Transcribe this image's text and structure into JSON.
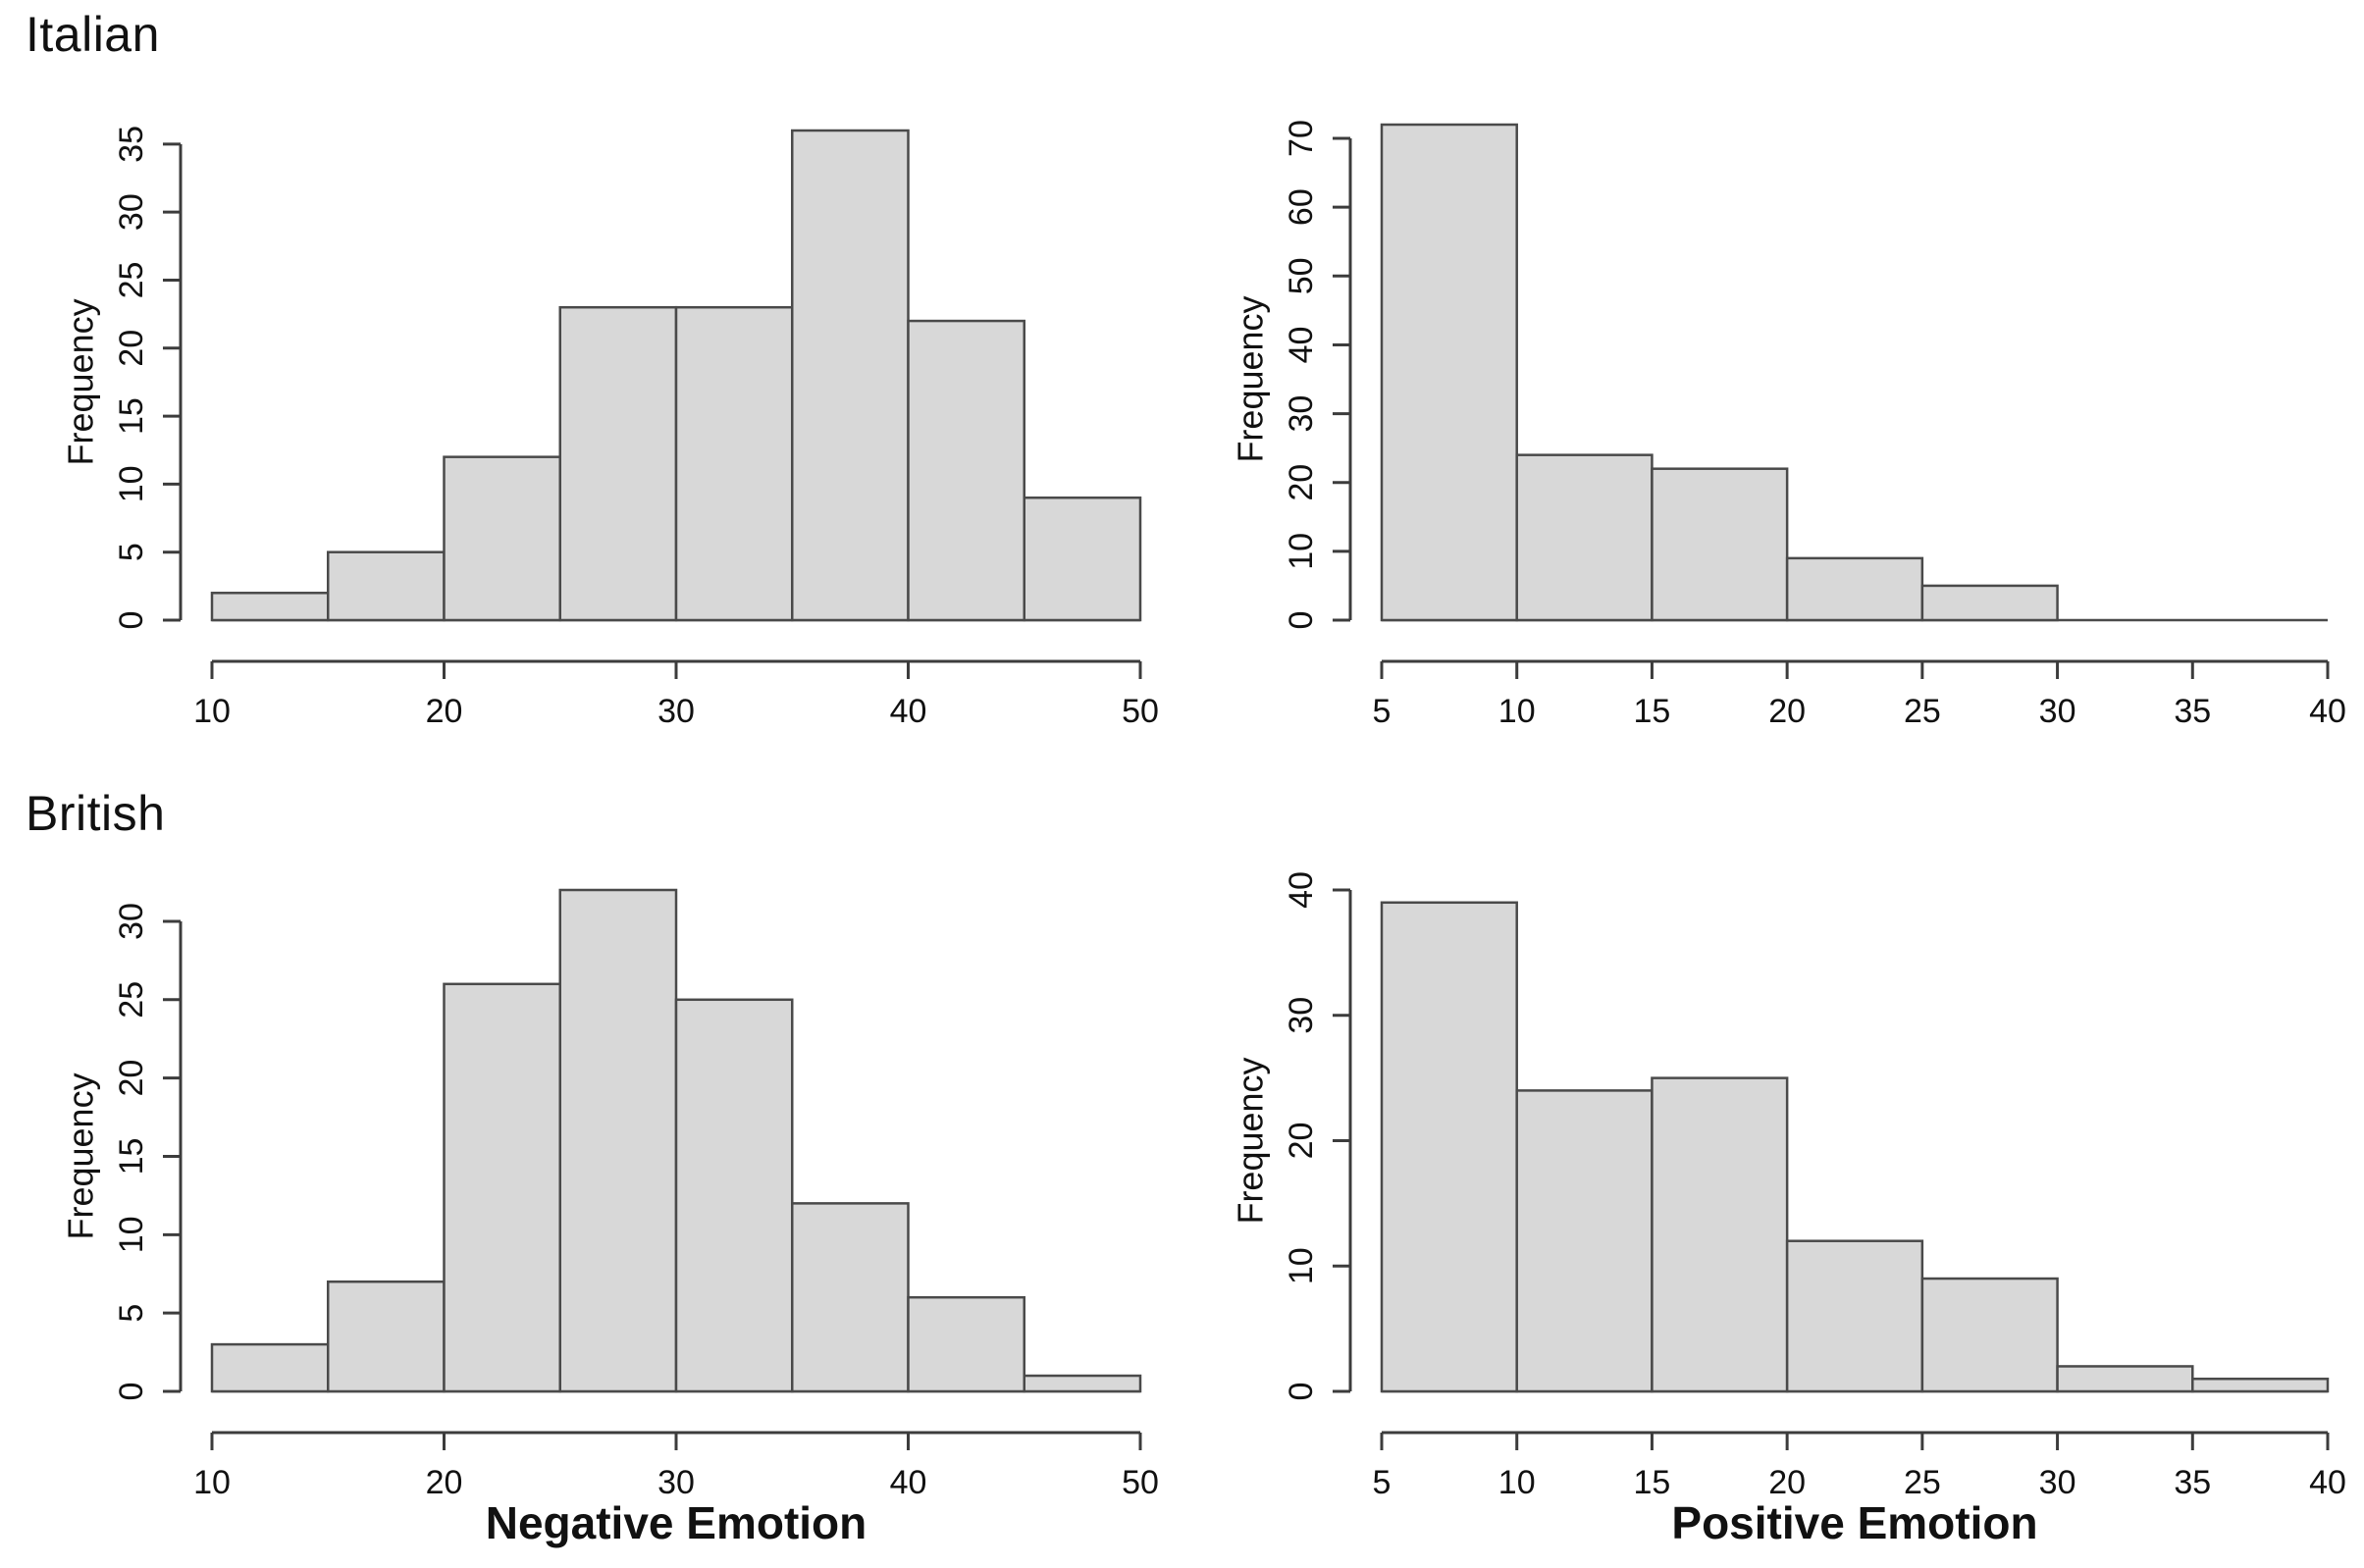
{
  "theme": {
    "background": "#ffffff",
    "bar_fill": "#d8d8d8",
    "bar_stroke": "#4a4a4a",
    "axis_color": "#3c3c3c",
    "text_color": "#111111"
  },
  "groups": [
    {
      "label": "Italian"
    },
    {
      "label": "British"
    }
  ],
  "chart_data": [
    {
      "id": "italian-negative-emotion-histogram",
      "type": "bar",
      "group": "Italian",
      "title": "",
      "xlabel": "",
      "ylabel": "Frequency",
      "bin_edges": [
        10,
        15,
        20,
        25,
        30,
        35,
        40,
        45,
        50
      ],
      "values": [
        2,
        5,
        12,
        23,
        23,
        36,
        22,
        9
      ],
      "x_ticks": [
        10,
        20,
        30,
        40,
        50
      ],
      "y_ticks": [
        0,
        5,
        10,
        15,
        20,
        25,
        30,
        35
      ],
      "xlim": [
        10,
        50
      ],
      "ylim": [
        0,
        36
      ],
      "grid": "off",
      "legend": "none"
    },
    {
      "id": "italian-positive-emotion-histogram",
      "type": "bar",
      "group": "Italian",
      "title": "",
      "xlabel": "",
      "ylabel": "Frequency",
      "bin_edges": [
        5,
        10,
        15,
        20,
        25,
        30,
        35,
        40
      ],
      "values": [
        72,
        24,
        22,
        9,
        5,
        0,
        0
      ],
      "x_ticks": [
        5,
        10,
        15,
        20,
        25,
        30,
        35,
        40
      ],
      "y_ticks": [
        0,
        10,
        20,
        30,
        40,
        50,
        60,
        70
      ],
      "xlim": [
        5,
        40
      ],
      "ylim": [
        0,
        72
      ],
      "grid": "off",
      "legend": "none"
    },
    {
      "id": "british-negative-emotion-histogram",
      "type": "bar",
      "group": "British",
      "title": "",
      "xlabel": "Negative Emotion",
      "ylabel": "Frequency",
      "bin_edges": [
        10,
        15,
        20,
        25,
        30,
        35,
        40,
        45,
        50
      ],
      "values": [
        3,
        7,
        26,
        32,
        25,
        12,
        6,
        1
      ],
      "x_ticks": [
        10,
        20,
        30,
        40,
        50
      ],
      "y_ticks": [
        0,
        5,
        10,
        15,
        20,
        25,
        30
      ],
      "xlim": [
        10,
        50
      ],
      "ylim": [
        0,
        32
      ],
      "grid": "off",
      "legend": "none"
    },
    {
      "id": "british-positive-emotion-histogram",
      "type": "bar",
      "group": "British",
      "title": "",
      "xlabel": "Positive Emotion",
      "ylabel": "Frequency",
      "bin_edges": [
        5,
        10,
        15,
        20,
        25,
        30,
        35,
        40
      ],
      "values": [
        39,
        24,
        25,
        12,
        9,
        2,
        1
      ],
      "x_ticks": [
        5,
        10,
        15,
        20,
        25,
        30,
        35,
        40
      ],
      "y_ticks": [
        0,
        10,
        20,
        30,
        40
      ],
      "xlim": [
        5,
        40
      ],
      "ylim": [
        0,
        40
      ],
      "grid": "off",
      "legend": "none"
    }
  ]
}
